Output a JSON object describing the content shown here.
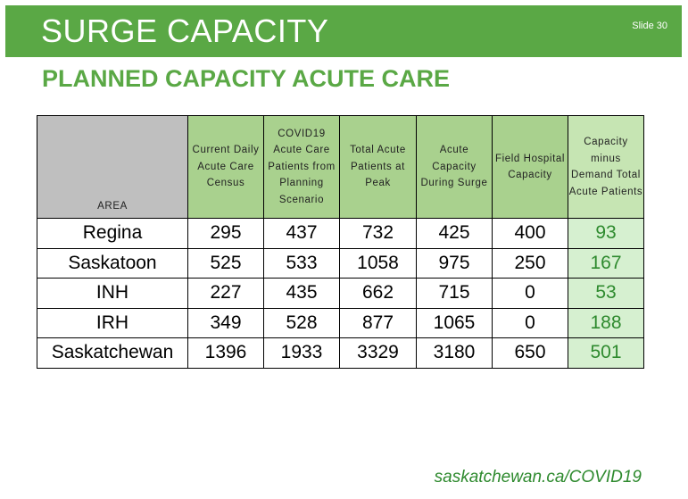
{
  "header": {
    "title": "SURGE CAPACITY",
    "slide_number": "Slide 30"
  },
  "subtitle": "PLANNED CAPACITY ACUTE CARE",
  "table": {
    "columns": [
      "AREA",
      "Current Daily Acute Care Census",
      "COVID19 Acute Care Patients from Planning Scenario",
      "Total Acute Patients at Peak",
      "Acute Capacity During Surge",
      "Field Hospital Capacity",
      "Capacity minus Demand Total Acute Patients"
    ],
    "rows": [
      [
        "Regina",
        "295",
        "437",
        "732",
        "425",
        "400",
        "93"
      ],
      [
        "Saskatoon",
        "525",
        "533",
        "1058",
        "975",
        "250",
        "167"
      ],
      [
        "INH",
        "227",
        "435",
        "662",
        "715",
        "0",
        "53"
      ],
      [
        "IRH",
        "349",
        "528",
        "877",
        "1065",
        "0",
        "188"
      ],
      [
        "Saskatchewan",
        "1396",
        "1933",
        "3329",
        "3180",
        "650",
        "501"
      ]
    ]
  },
  "footer": {
    "link": "saskatchewan.ca/COVID19"
  },
  "colors": {
    "brand_green": "#5aa845",
    "header_cell_green": "#a9d18e",
    "area_header_gray": "#bfbfbf",
    "result_cell_green": "#d6f0d0",
    "result_text_green": "#2e8a2e"
  }
}
